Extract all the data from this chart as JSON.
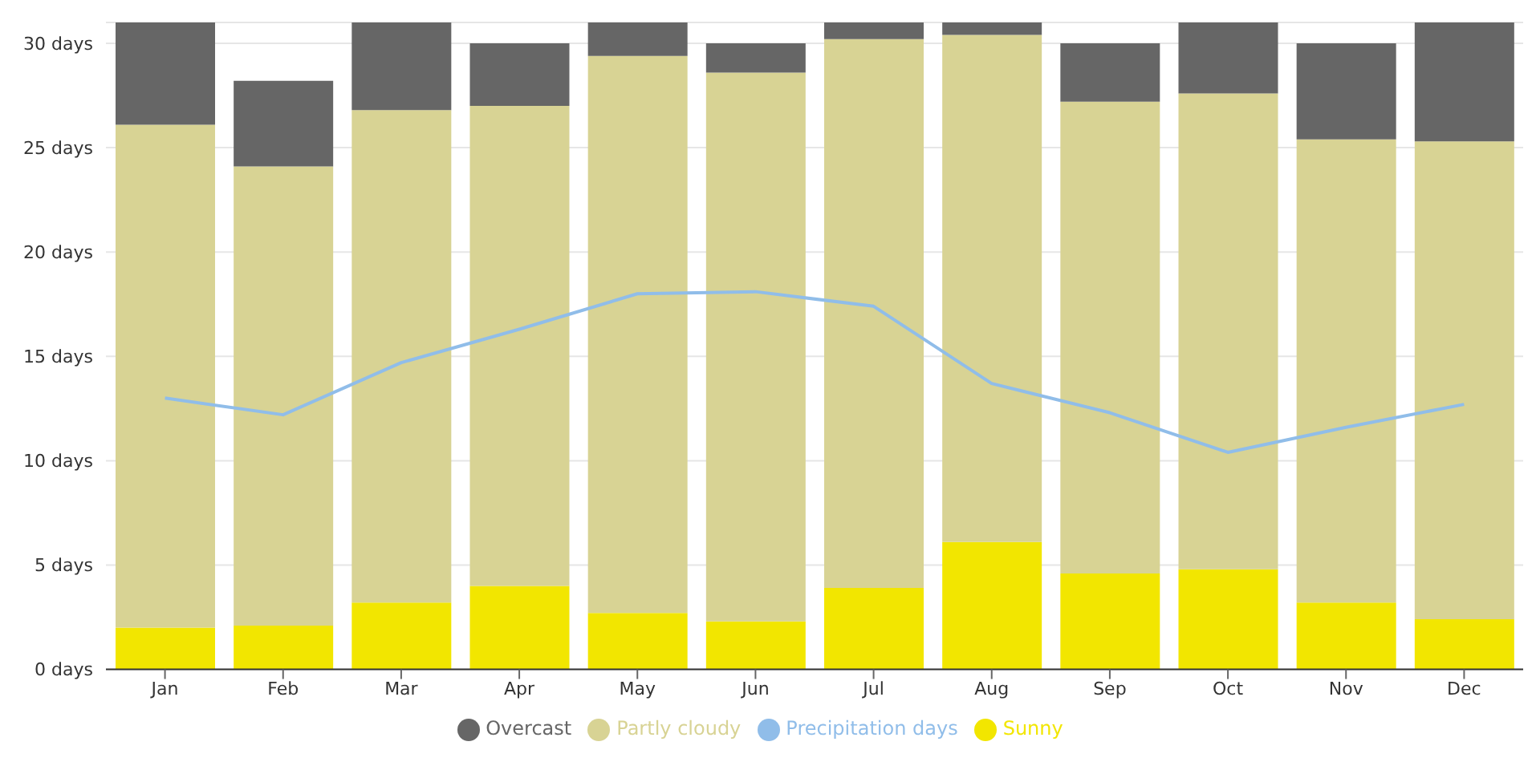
{
  "chart_data": {
    "type": "bar",
    "stacked": true,
    "categories": [
      "Jan",
      "Feb",
      "Mar",
      "Apr",
      "May",
      "Jun",
      "Jul",
      "Aug",
      "Sep",
      "Oct",
      "Nov",
      "Dec"
    ],
    "series": [
      {
        "name": "Precipitation days",
        "type": "line",
        "color": "#90bde9",
        "values": [
          13.0,
          12.2,
          14.7,
          16.3,
          18.0,
          18.1,
          17.4,
          13.7,
          12.3,
          10.4,
          11.6,
          12.7
        ]
      },
      {
        "name": "Sunny",
        "color": "#f2e600",
        "values": [
          2.0,
          2.1,
          3.2,
          4.0,
          2.7,
          2.3,
          3.9,
          6.1,
          4.6,
          4.8,
          3.2,
          2.4
        ]
      },
      {
        "name": "Partly cloudy",
        "color": "#d8d394",
        "values": [
          24.1,
          22.0,
          23.6,
          23.0,
          26.7,
          26.3,
          26.3,
          24.3,
          22.6,
          22.8,
          22.2,
          22.9
        ]
      },
      {
        "name": "Overcast",
        "color": "#666666",
        "values": [
          4.9,
          4.1,
          4.2,
          3.0,
          1.6,
          1.4,
          0.8,
          0.6,
          2.8,
          3.4,
          4.6,
          5.7
        ]
      }
    ],
    "ylim": [
      0,
      31
    ],
    "yticks": [
      {
        "value": 0,
        "label": "0 days"
      },
      {
        "value": 5,
        "label": "5 days"
      },
      {
        "value": 10,
        "label": "10 days"
      },
      {
        "value": 15,
        "label": "15 days"
      },
      {
        "value": 20,
        "label": "20 days"
      },
      {
        "value": 25,
        "label": "25 days"
      },
      {
        "value": 30,
        "label": "30 days"
      }
    ],
    "grid": "y",
    "legend": "bottom",
    "marker": "none"
  }
}
